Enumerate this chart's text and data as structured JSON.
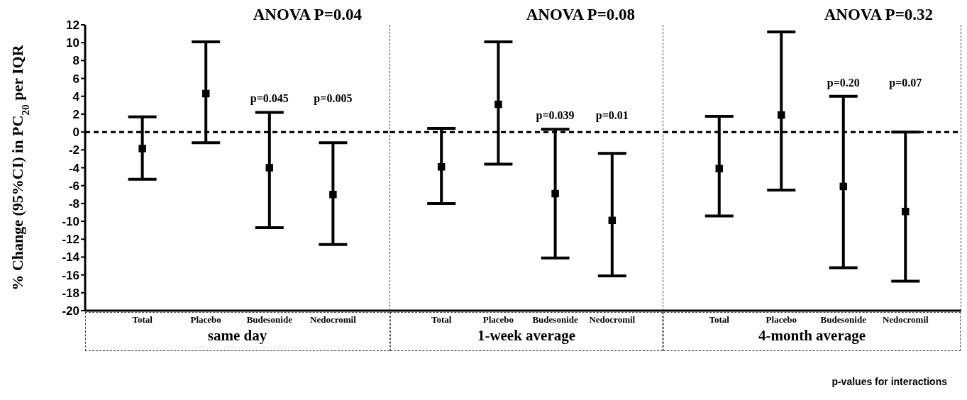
{
  "chart_data": [
    {
      "type": "scatter",
      "xlabel": "same day",
      "ylabel": "% Change (95%CI) in PC$_{20}$ per IQR",
      "categories": [
        "Total",
        "Placebo",
        "Budesonide",
        "Nedocromil"
      ],
      "values": [
        -1.85,
        4.3,
        -4.0,
        -7.0
      ],
      "errors": [
        [
          -5.3,
          1.7
        ],
        [
          -1.2,
          10.1
        ],
        [
          -10.7,
          2.2
        ],
        [
          -12.6,
          -1.2
        ]
      ],
      "color": "#000000",
      "marker": "square",
      "ylim": [
        -20,
        12
      ],
      "yticks": [
        -20,
        -18,
        -16,
        -14,
        -12,
        -10,
        -8,
        -6,
        -4,
        -2,
        0,
        2,
        4,
        6,
        8,
        10,
        12
      ],
      "ref_lines": [
        {
          "axis": "y",
          "value": 0,
          "line_style": "dashed",
          "color": "#000000"
        }
      ],
      "annotations": [
        "ANOVA P=0.04",
        "p=0.045",
        "p=0.005"
      ]
    },
    {
      "type": "scatter",
      "xlabel": "1-week  average",
      "categories": [
        "Total",
        "Placebo",
        "Budesonide",
        "Nedocromil"
      ],
      "values": [
        -3.9,
        3.1,
        -6.9,
        -9.9
      ],
      "errors": [
        [
          -8.0,
          0.4
        ],
        [
          -3.6,
          10.1
        ],
        [
          -14.1,
          0.3
        ],
        [
          -16.1,
          -2.4
        ]
      ],
      "color": "#000000",
      "marker": "square",
      "ylim": [
        -20,
        12
      ],
      "yticks": [
        -20,
        -18,
        -16,
        -14,
        -12,
        -10,
        -8,
        -6,
        -4,
        -2,
        0,
        2,
        4,
        6,
        8,
        10,
        12
      ],
      "tick_labels": "x",
      "ref_lines": [
        {
          "axis": "y",
          "value": 0,
          "line_style": "dashed",
          "color": "#000000"
        }
      ],
      "annotations": [
        "ANOVA P=0.08",
        "p=0.039",
        "p=0.01"
      ]
    },
    {
      "type": "scatter",
      "xlabel": "4-month  average",
      "categories": [
        "Total",
        "Placebo",
        "Budesonide",
        "Nedocromil"
      ],
      "values": [
        -4.1,
        1.9,
        -6.1,
        -8.9
      ],
      "errors": [
        [
          -9.4,
          1.75
        ],
        [
          -6.5,
          11.2
        ],
        [
          -15.2,
          4.0
        ],
        [
          -16.7,
          0
        ]
      ],
      "color": "#000000",
      "marker": "square",
      "ylim": [
        -20,
        12
      ],
      "yticks": [
        -20,
        -18,
        -16,
        -14,
        -12,
        -10,
        -8,
        -6,
        -4,
        -2,
        0,
        2,
        4,
        6,
        8,
        10,
        12
      ],
      "tick_labels": "x",
      "ref_lines": [
        {
          "axis": "y",
          "value": 0,
          "line_style": "dashed",
          "color": "#000000"
        }
      ],
      "annotations": [
        "ANOVA P=0.32",
        "p=0.20",
        "p=0.07",
        "p-values for interactions"
      ]
    }
  ]
}
